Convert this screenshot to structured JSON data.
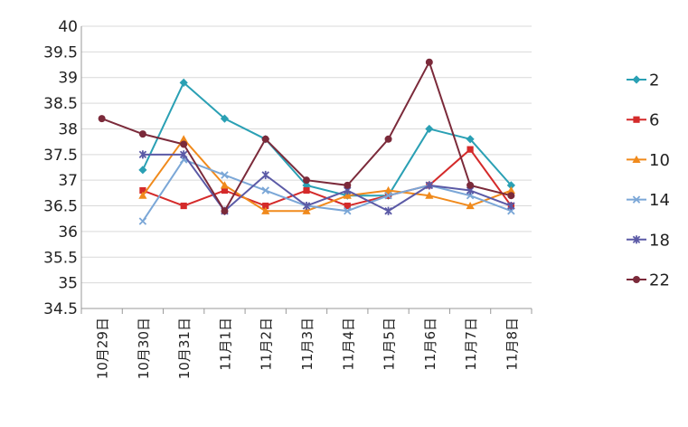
{
  "chart_data": {
    "type": "line",
    "title": "",
    "xlabel": "",
    "ylabel": "",
    "categories": [
      "10月29日",
      "10月30日",
      "10月31日",
      "11月1日",
      "11月2日",
      "11月3日",
      "11月4日",
      "11月5日",
      "11月6日",
      "11月7日",
      "11月8日"
    ],
    "ylim": [
      34.5,
      40
    ],
    "yticks": [
      "34.5",
      "35",
      "35.5",
      "36",
      "36.5",
      "37",
      "37.5",
      "38",
      "38.5",
      "39",
      "39.5",
      "40"
    ],
    "grid": true,
    "legend_position": "right",
    "series": [
      {
        "name": "2",
        "color": "#2aa0b4",
        "marker": "diamond",
        "values": [
          null,
          37.2,
          38.9,
          38.2,
          37.8,
          36.9,
          36.7,
          36.7,
          38.0,
          37.8,
          36.9
        ]
      },
      {
        "name": "6",
        "color": "#d42a2a",
        "marker": "square",
        "values": [
          null,
          36.8,
          36.5,
          36.8,
          36.5,
          36.8,
          36.5,
          36.7,
          36.9,
          37.6,
          36.5
        ]
      },
      {
        "name": "10",
        "color": "#f08a1c",
        "marker": "triangle",
        "values": [
          null,
          36.7,
          37.8,
          36.9,
          36.4,
          36.4,
          36.7,
          36.8,
          36.7,
          36.5,
          36.8
        ]
      },
      {
        "name": "14",
        "color": "#7ba7d7",
        "marker": "x",
        "values": [
          null,
          36.2,
          37.4,
          37.1,
          36.8,
          36.5,
          36.4,
          36.7,
          36.9,
          36.7,
          36.4
        ]
      },
      {
        "name": "18",
        "color": "#5b5aa6",
        "marker": "star",
        "values": [
          null,
          37.5,
          37.5,
          36.4,
          37.1,
          36.5,
          36.8,
          36.4,
          36.9,
          36.8,
          36.5
        ]
      },
      {
        "name": "22",
        "color": "#7b2a3a",
        "marker": "circle",
        "values": [
          38.2,
          37.9,
          37.7,
          36.4,
          37.8,
          37.0,
          36.9,
          37.8,
          39.3,
          36.9,
          36.7
        ]
      }
    ]
  }
}
